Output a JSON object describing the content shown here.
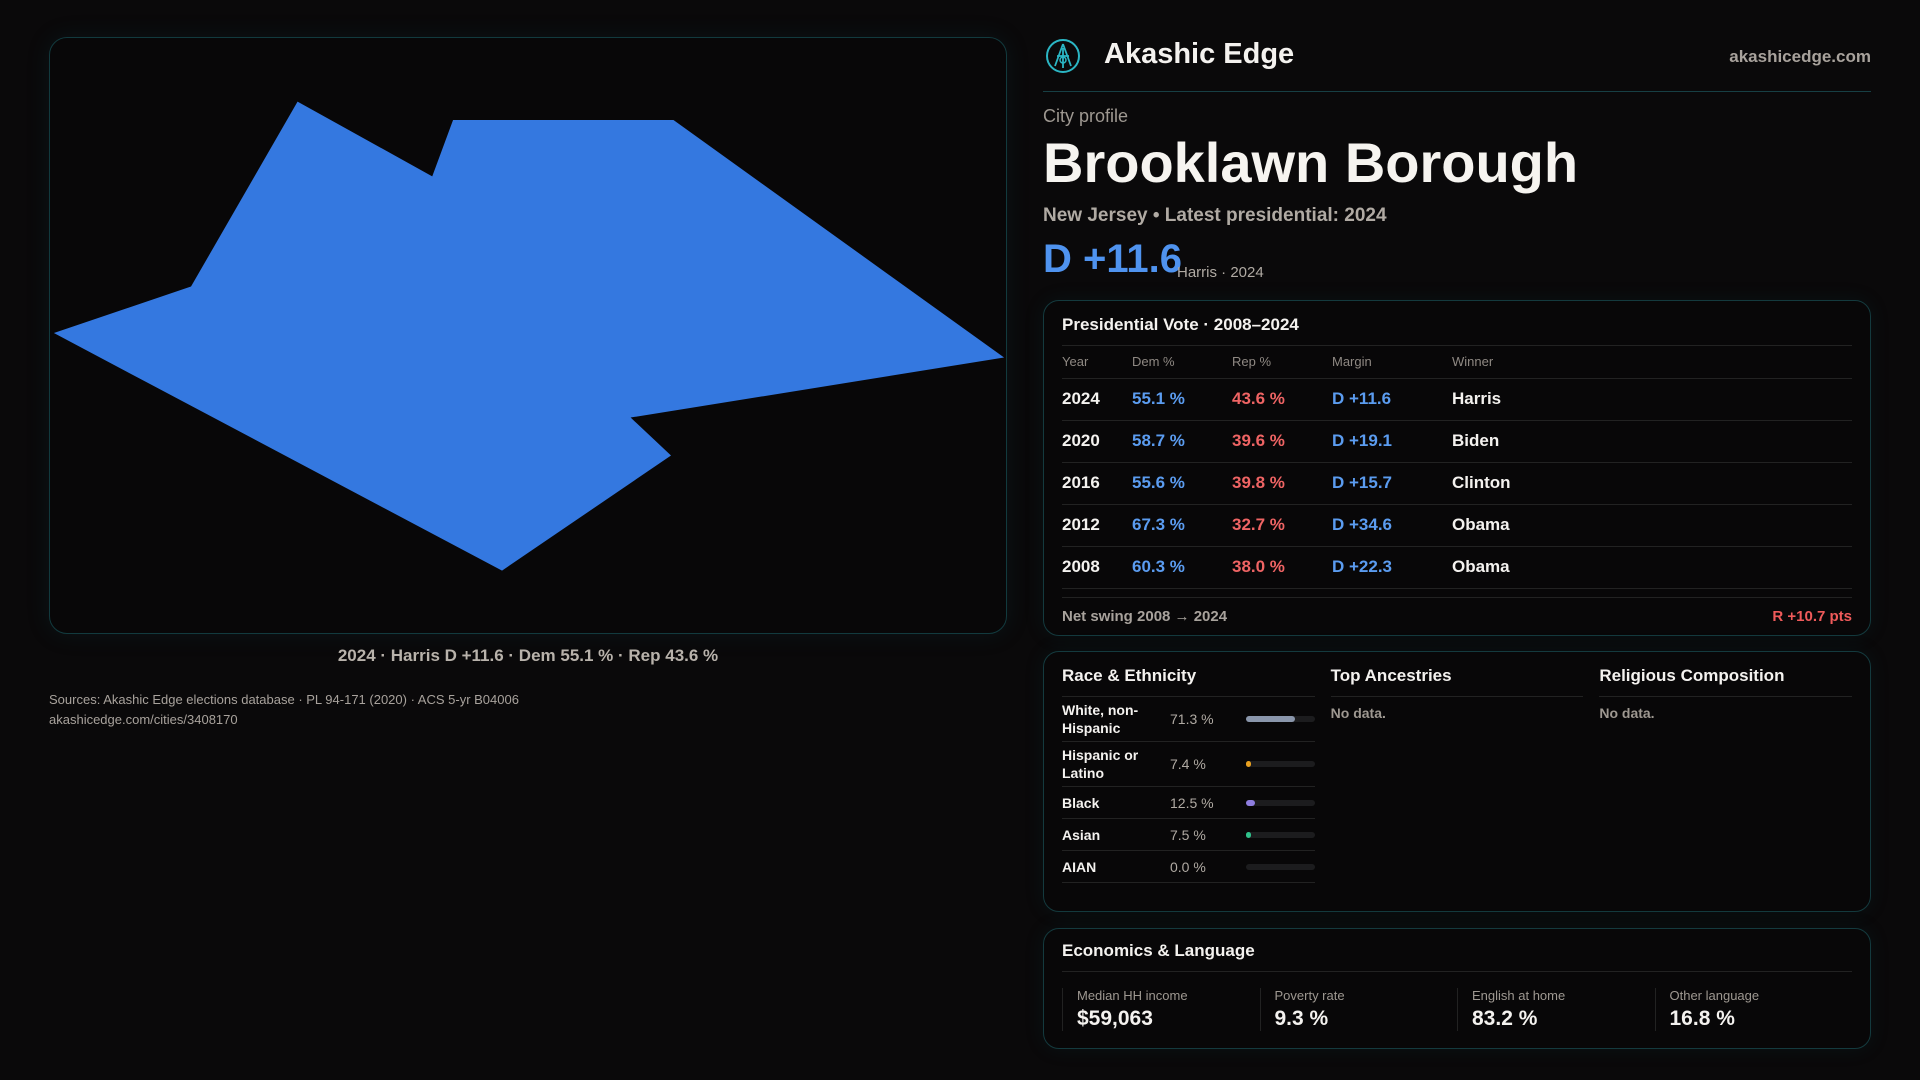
{
  "brand": {
    "name": "Akashic Edge",
    "site": "akashicedge.com"
  },
  "map": {
    "caption": "2024 · Harris D +11.6 · Dem 55.1 % · Rep 43.6 %",
    "fill": "#3478e0"
  },
  "profile": {
    "kicker": "City profile",
    "title": "Brooklawn Borough",
    "subtitle": "New Jersey • Latest presidential: 2024",
    "margin": "D +11.6",
    "margin_note": "Harris · 2024"
  },
  "vote": {
    "title": "Presidential Vote · 2008–2024",
    "headers": [
      "Year",
      "Dem %",
      "Rep %",
      "Margin",
      "Winner"
    ],
    "rows": [
      [
        "2024",
        "55.1 %",
        "43.6 %",
        "D +11.6",
        "Harris"
      ],
      [
        "2020",
        "58.7 %",
        "39.6 %",
        "D +19.1",
        "Biden"
      ],
      [
        "2016",
        "55.6 %",
        "39.8 %",
        "D +15.7",
        "Clinton"
      ],
      [
        "2012",
        "67.3 %",
        "32.7 %",
        "D +34.6",
        "Obama"
      ],
      [
        "2008",
        "60.3 %",
        "38.0 %",
        "D +22.3",
        "Obama"
      ]
    ],
    "swing_label": "Net swing 2008 → 2024",
    "swing_value": "R +10.7 pts"
  },
  "race": {
    "title": "Race & Ethnicity",
    "rows": [
      {
        "label": "White, non-Hispanic",
        "value": "71.3 %",
        "pct": 71.3,
        "color": "#8a96ab"
      },
      {
        "label": "Hispanic or Latino",
        "value": "7.4 %",
        "pct": 7.4,
        "color": "#e8a020"
      },
      {
        "label": "Black",
        "value": "12.5 %",
        "pct": 12.5,
        "color": "#8f7ee0"
      },
      {
        "label": "Asian",
        "value": "7.5 %",
        "pct": 7.5,
        "color": "#2fc08a"
      },
      {
        "label": "AIAN",
        "value": "0.0 %",
        "pct": 0,
        "color": "#555"
      }
    ]
  },
  "ancestry": {
    "title": "Top Ancestries",
    "empty": "No data."
  },
  "religion": {
    "title": "Religious Composition",
    "empty": "No data."
  },
  "econ": {
    "title": "Economics & Language",
    "stats": [
      {
        "label": "Median HH income",
        "value": "$59,063"
      },
      {
        "label": "Poverty rate",
        "value": "9.3 %"
      },
      {
        "label": "English at home",
        "value": "83.2 %"
      },
      {
        "label": "Other language",
        "value": "16.8 %"
      }
    ]
  },
  "footer": {
    "sources": "Sources: Akashic Edge elections database · PL 94-171 (2020) · ACS 5-yr B04006",
    "url": "akashicedge.com/cities/3408170"
  }
}
